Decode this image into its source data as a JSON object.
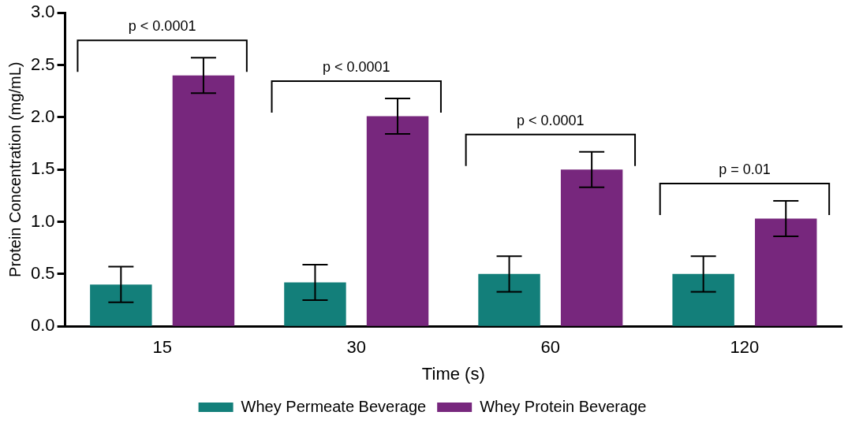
{
  "chart_data": {
    "type": "bar",
    "xlabel": "Time (s)",
    "ylabel": "Protein Concentration (mg/mL)",
    "categories": [
      "15",
      "30",
      "60",
      "120"
    ],
    "series": [
      {
        "name": "Whey Permeate Beverage",
        "color": "#137f7a",
        "values": [
          0.4,
          0.42,
          0.5,
          0.5
        ],
        "errors": [
          0.17,
          0.17,
          0.17,
          0.17
        ]
      },
      {
        "name": "Whey Protein Beverage",
        "color": "#77277d",
        "values": [
          2.4,
          2.01,
          1.5,
          1.03
        ],
        "errors": [
          0.17,
          0.17,
          0.17,
          0.17
        ]
      }
    ],
    "ylim": [
      0,
      3
    ],
    "yticks": [
      {
        "value": 0,
        "label": "0.0"
      },
      {
        "value": 0.5,
        "label": "0.5"
      },
      {
        "value": 1,
        "label": "1.0"
      },
      {
        "value": 1.5,
        "label": "1.5"
      },
      {
        "value": 2,
        "label": "2.0"
      },
      {
        "value": 2.5,
        "label": "2.5"
      },
      {
        "value": 3,
        "label": "3.0"
      }
    ],
    "annotations": [
      "p < 0.0001",
      "p < 0.0001",
      "p < 0.0001",
      "p = 0.01"
    ],
    "grid": false,
    "legend": "bottom"
  }
}
